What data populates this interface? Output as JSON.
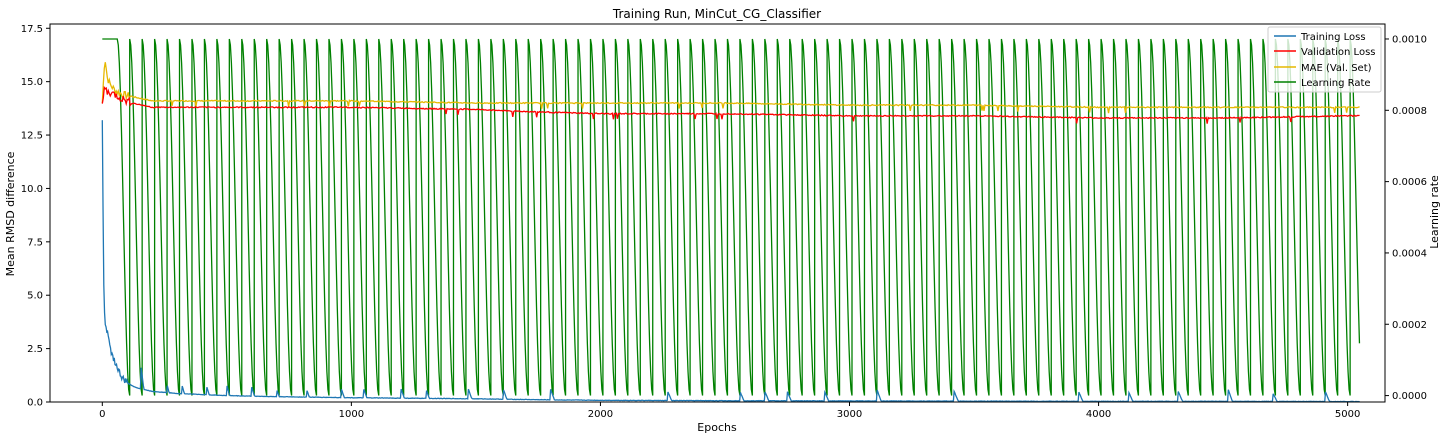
{
  "chart_data": {
    "type": "line",
    "title": "Training Run, MinCut_CG_Classifier",
    "xlabel": "Epochs",
    "ylabel": "Mean RMSD difference",
    "ylabel_right": "Learning rate",
    "xlim": [
      -210,
      5150
    ],
    "ylim": [
      0,
      17.7
    ],
    "ylim_right": [
      -1.8e-05,
      0.001042
    ],
    "xticks": [
      0,
      1000,
      2000,
      3000,
      4000,
      5000
    ],
    "xtick_labels": [
      "0",
      "1000",
      "2000",
      "3000",
      "4000",
      "5000"
    ],
    "yticks": [
      0,
      2.5,
      5,
      7.5,
      10,
      12.5,
      15,
      17.5
    ],
    "ytick_labels": [
      "0.0",
      "2.5",
      "5.0",
      "7.5",
      "10.0",
      "12.5",
      "15.0",
      "17.5"
    ],
    "yticks_right": [
      0,
      0.0002,
      0.0004,
      0.0006,
      0.0008,
      0.001
    ],
    "ytick_labels_right": [
      "0.0000",
      "0.0002",
      "0.0004",
      "0.0006",
      "0.0008",
      "0.0010"
    ],
    "grid": false,
    "legend_position": "top-right",
    "series": [
      {
        "name": "Training Loss",
        "color": "#1f77b4",
        "axis": "left",
        "x": [
          0,
          5,
          10,
          20,
          30,
          40,
          60,
          80,
          100,
          130,
          160,
          200,
          250,
          300,
          400,
          500,
          700,
          1000,
          1500,
          1800,
          2000,
          2500,
          3000,
          3500,
          4000,
          4500,
          5000,
          5050
        ],
        "y": [
          13.3,
          6.0,
          3.8,
          3.3,
          2.6,
          2.2,
          1.6,
          1.1,
          0.9,
          0.7,
          0.6,
          0.5,
          0.45,
          0.4,
          0.35,
          0.3,
          0.25,
          0.2,
          0.15,
          0.1,
          0.08,
          0.06,
          0.05,
          0.04,
          0.03,
          0.03,
          0.02,
          0.02
        ],
        "spikes_x": [
          155,
          260,
          320,
          420,
          500,
          600,
          700,
          820,
          960,
          1050,
          1200,
          1300,
          1470,
          1610,
          1800,
          2270,
          2560,
          2660,
          2750,
          2900,
          3110,
          3420,
          3920,
          4120,
          4320,
          4520,
          4700,
          4910
        ],
        "spikes_y": [
          1.7,
          0.8,
          0.8,
          0.7,
          0.8,
          0.7,
          0.6,
          0.6,
          0.6,
          0.6,
          0.6,
          0.6,
          0.6,
          0.6,
          0.6,
          0.5,
          0.5,
          0.5,
          0.5,
          0.5,
          0.6,
          0.5,
          0.5,
          0.5,
          0.5,
          0.6,
          0.4,
          0.5
        ]
      },
      {
        "name": "Validation Loss",
        "color": "#ff0000",
        "axis": "left",
        "x": [
          0,
          10,
          20,
          30,
          50,
          80,
          120,
          200,
          300,
          500,
          800,
          1000,
          1500,
          1700,
          2000,
          2500,
          3000,
          3500,
          4000,
          4500,
          5000,
          5050
        ],
        "y": [
          13.9,
          14.8,
          14.5,
          14.5,
          14.4,
          14.2,
          14.0,
          13.8,
          13.8,
          13.8,
          13.8,
          13.8,
          13.7,
          13.6,
          13.5,
          13.5,
          13.4,
          13.4,
          13.3,
          13.3,
          13.4,
          13.4
        ]
      },
      {
        "name": "MAE (Val. Set)",
        "color": "#e6b800",
        "axis": "left",
        "x": [
          0,
          10,
          20,
          30,
          50,
          80,
          120,
          200,
          300,
          500,
          800,
          1000,
          1500,
          1700,
          2000,
          2500,
          3000,
          3500,
          4000,
          4500,
          5000,
          5050
        ],
        "y": [
          14.0,
          16.2,
          15.2,
          14.9,
          14.6,
          14.4,
          14.3,
          14.1,
          14.1,
          14.1,
          14.1,
          14.1,
          14.0,
          14.0,
          14.0,
          14.0,
          13.9,
          13.9,
          13.8,
          13.8,
          13.8,
          13.8
        ]
      },
      {
        "name": "Learning Rate",
        "color": "#008000",
        "axis": "right",
        "min": 1e-07,
        "max": 0.001,
        "flat_until": 55,
        "cycle_start": 60,
        "period": 50,
        "x_end": 5050
      }
    ]
  }
}
